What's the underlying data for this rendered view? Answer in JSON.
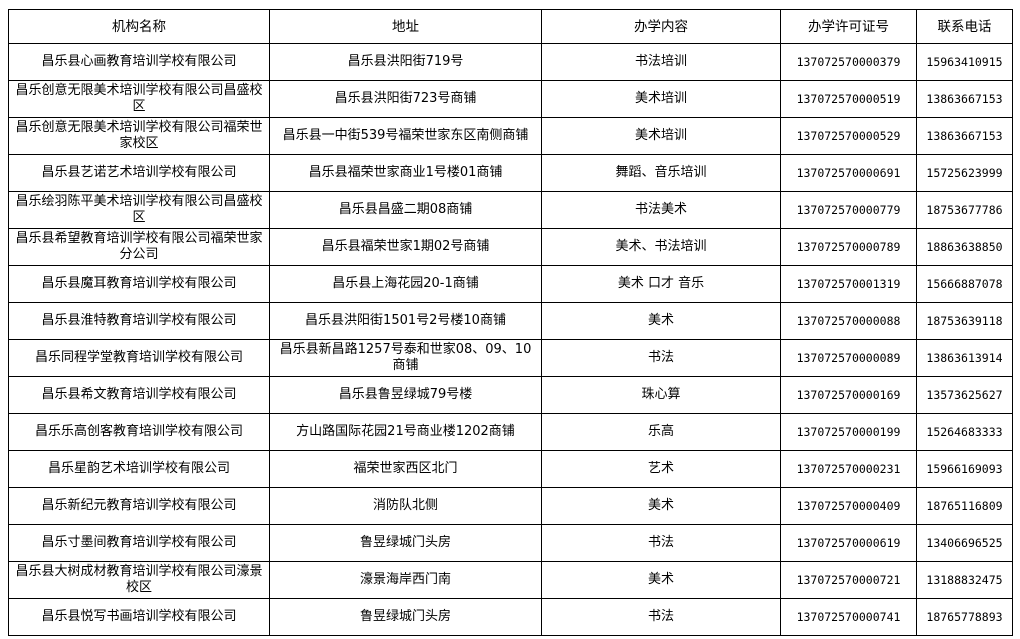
{
  "table": {
    "headers": [
      "机构名称",
      "地址",
      "办学内容",
      "办学许可证号",
      "联系电话"
    ],
    "rows": [
      [
        "昌乐县心画教育培训学校有限公司",
        "昌乐县洪阳街719号",
        "书法培训",
        "137072570000379",
        "15963410915"
      ],
      [
        "昌乐创意无限美术培训学校有限公司昌盛校区",
        "昌乐县洪阳街723号商铺",
        "美术培训",
        "137072570000519",
        "13863667153"
      ],
      [
        "昌乐创意无限美术培训学校有限公司福荣世家校区",
        "昌乐县一中街539号福荣世家东区南侧商铺",
        "美术培训",
        "137072570000529",
        "13863667153"
      ],
      [
        "昌乐县艺诺艺术培训学校有限公司",
        "昌乐县福荣世家商业1号楼01商铺",
        "舞蹈、音乐培训",
        "137072570000691",
        "15725623999"
      ],
      [
        "昌乐绘羽陈平美术培训学校有限公司昌盛校区",
        "昌乐县昌盛二期08商铺",
        "书法美术",
        "137072570000779",
        "18753677786"
      ],
      [
        "昌乐县希望教育培训学校有限公司福荣世家分公司",
        "昌乐县福荣世家1期02号商铺",
        "美术、书法培训",
        "137072570000789",
        "18863638850"
      ],
      [
        "昌乐县魔耳教育培训学校有限公司",
        "昌乐县上海花园20-1商铺",
        "美术 口才 音乐",
        "137072570001319",
        "15666887078"
      ],
      [
        "昌乐县淮特教育培训学校有限公司",
        "昌乐县洪阳街1501号2号楼10商铺",
        "美术",
        "137072570000088",
        "18753639118"
      ],
      [
        "昌乐同程学堂教育培训学校有限公司",
        "昌乐县新昌路1257号泰和世家08、09、10商铺",
        "书法",
        "137072570000089",
        "13863613914"
      ],
      [
        "昌乐县希文教育培训学校有限公司",
        "昌乐县鲁昱绿城79号楼",
        "珠心算",
        "137072570000169",
        "13573625627"
      ],
      [
        "昌乐乐高创客教育培训学校有限公司",
        "方山路国际花园21号商业楼1202商铺",
        "乐高",
        "137072570000199",
        "15264683333"
      ],
      [
        "昌乐星韵艺术培训学校有限公司",
        "福荣世家西区北门",
        "艺术",
        "137072570000231",
        "15966169093"
      ],
      [
        "昌乐新纪元教育培训学校有限公司",
        "消防队北侧",
        "美术",
        "137072570000409",
        "18765116809"
      ],
      [
        "昌乐寸墨间教育培训学校有限公司",
        "鲁昱绿城门头房",
        "书法",
        "137072570000619",
        "13406696525"
      ],
      [
        "昌乐县大树成材教育培训学校有限公司濠景校区",
        "濠景海岸西门南",
        "美术",
        "137072570000721",
        "13188832475"
      ],
      [
        "昌乐县悦写书画培训学校有限公司",
        "鲁昱绿城门头房",
        "书法",
        "137072570000741",
        "18765778893"
      ]
    ]
  }
}
